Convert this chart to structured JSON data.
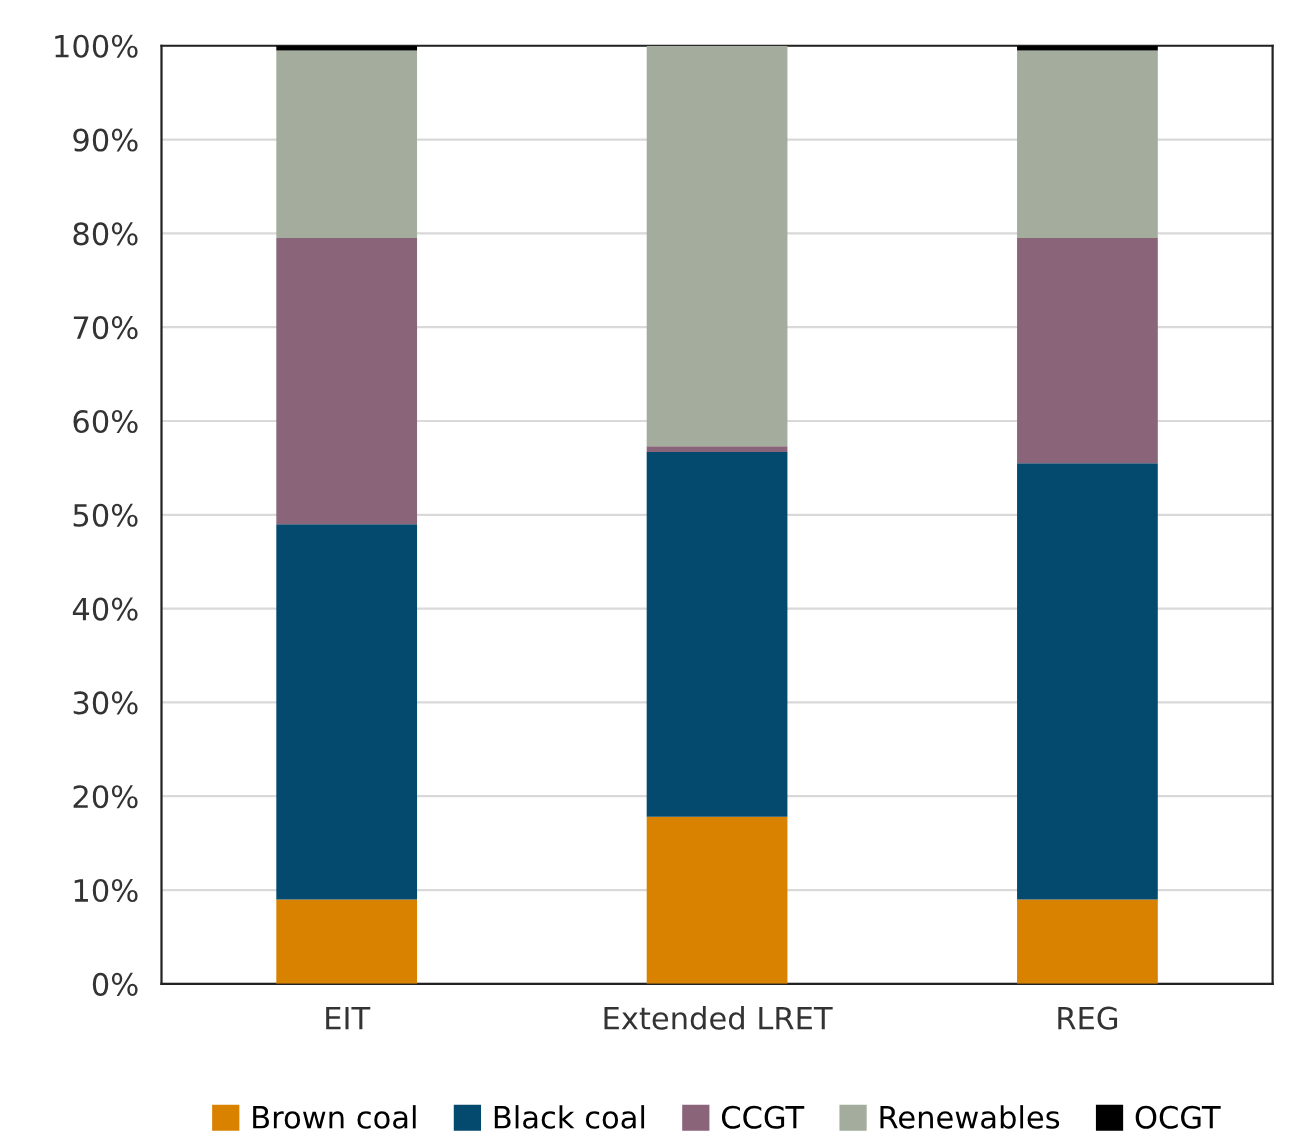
{
  "chart_data": {
    "type": "bar",
    "stacked": true,
    "categories": [
      "EIT",
      "Extended LRET",
      "REG"
    ],
    "series": [
      {
        "name": "Brown coal",
        "color": "#d98200",
        "values": [
          9.0,
          17.8,
          9.0
        ]
      },
      {
        "name": "Black coal",
        "color": "#044a6e",
        "values": [
          40.0,
          38.9,
          46.5
        ]
      },
      {
        "name": "CCGT",
        "color": "#8a6478",
        "values": [
          30.5,
          0.6,
          24.0
        ]
      },
      {
        "name": "Renewables",
        "color": "#a3ac9d",
        "values": [
          20.0,
          42.7,
          20.0
        ]
      },
      {
        "name": "OCGT",
        "color": "#000000",
        "values": [
          0.5,
          0.0,
          0.5
        ]
      }
    ],
    "ylim": [
      0,
      100
    ],
    "yticks": [
      {
        "value": 0,
        "label": "0%"
      },
      {
        "value": 10,
        "label": "10%"
      },
      {
        "value": 20,
        "label": "20%"
      },
      {
        "value": 30,
        "label": "30%"
      },
      {
        "value": 40,
        "label": "40%"
      },
      {
        "value": 50,
        "label": "50%"
      },
      {
        "value": 60,
        "label": "60%"
      },
      {
        "value": 70,
        "label": "70%"
      },
      {
        "value": 80,
        "label": "80%"
      },
      {
        "value": 90,
        "label": "90%"
      },
      {
        "value": 100,
        "label": "100%"
      }
    ],
    "grid": "y",
    "legend": "bottom"
  }
}
